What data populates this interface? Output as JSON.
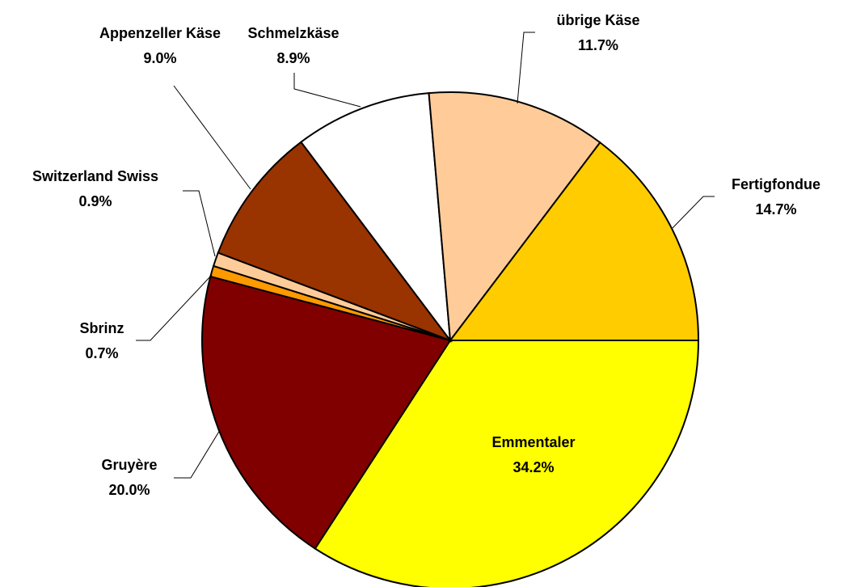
{
  "chart_data": {
    "type": "pie",
    "categories": [
      "Emmentaler",
      "Gruyère",
      "Sbrinz",
      "Switzerland Swiss",
      "Appenzeller Käse",
      "Schmelzkäse",
      "übrige Käse",
      "Fertigfondue"
    ],
    "values": [
      34.2,
      20.0,
      0.7,
      0.9,
      9.0,
      8.9,
      11.7,
      14.7
    ],
    "value_labels": [
      "34.2%",
      "20.0%",
      "0.7%",
      "0.9%",
      "9.0%",
      "8.9%",
      "11.7%",
      "14.7%"
    ],
    "colors": [
      "#FFFF00",
      "#800000",
      "#FF9900",
      "#FFCC99",
      "#993300",
      "#FFFFFF",
      "#FFCC99",
      "#FFCC00"
    ]
  }
}
